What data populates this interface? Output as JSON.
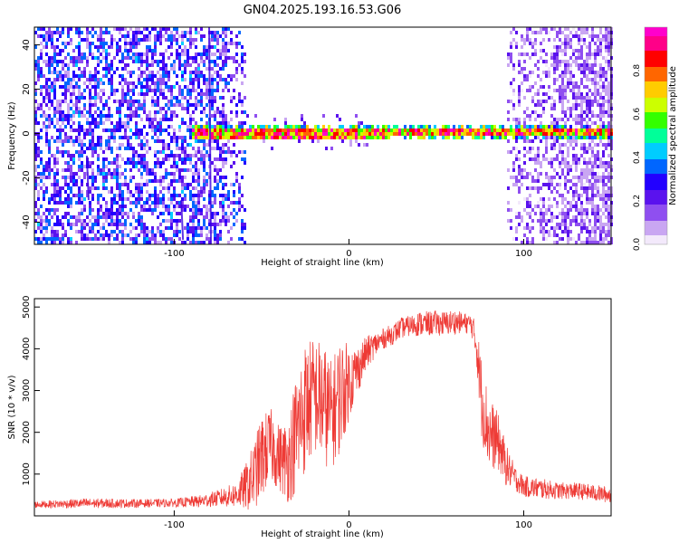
{
  "title": "GN04.2025.193.16.53.G06",
  "colors": {
    "spectrogram_low": "#dcc6f5",
    "spectrogram_mid": "#6a17f2",
    "snr_line": "#ee3a35"
  },
  "chart_data": [
    {
      "type": "heatmap",
      "title": "GN04.2025.193.16.53.G06",
      "xlabel": "Height of straight line (km)",
      "ylabel": "Frequency (Hz)",
      "xlim": [
        -180,
        150
      ],
      "ylim": [
        -50,
        48
      ],
      "xticks": [
        -100,
        0,
        100
      ],
      "yticks": [
        -40,
        -20,
        0,
        20,
        40
      ],
      "colorbar": {
        "label": "Normalized spectral amplitude",
        "range": [
          0,
          1
        ],
        "ticks": [
          0.0,
          0.2,
          0.4,
          0.6,
          0.8
        ],
        "colormap": [
          "#f3e9fb",
          "#c9a6f2",
          "#8f4ff0",
          "#5a12ee",
          "#2200ff",
          "#0066ff",
          "#00ccff",
          "#00ff99",
          "#33ff00",
          "#ccff00",
          "#ffcc00",
          "#ff6600",
          "#ff0000",
          "#ff0088",
          "#ff00cc"
        ]
      },
      "regions": [
        {
          "name": "noise-dense-left",
          "x": [
            -180,
            -60
          ],
          "y": [
            -50,
            48
          ],
          "amplitude": 0.25
        },
        {
          "name": "noise-sparse-right",
          "x": [
            90,
            150
          ],
          "y": [
            -50,
            48
          ],
          "amplitude": 0.1
        },
        {
          "name": "signal-band",
          "x": [
            -90,
            150
          ],
          "y_center": 1,
          "amplitude": 0.9
        }
      ]
    },
    {
      "type": "line",
      "xlabel": "Height of straight line (km)",
      "ylabel": "SNR (10 * v/v)",
      "xlim": [
        -180,
        150
      ],
      "ylim": [
        0,
        5200
      ],
      "xticks": [
        -100,
        0,
        100
      ],
      "yticks": [
        1000,
        2000,
        3000,
        4000,
        5000
      ],
      "series": [
        {
          "x": [
            -180,
            -150,
            -120,
            -100,
            -85,
            -75,
            -65,
            -60,
            -55,
            -50,
            -45,
            -40,
            -35,
            -30,
            -25,
            -20,
            -15,
            -10,
            -5,
            0,
            5,
            10,
            15,
            20,
            25,
            30,
            35,
            40,
            45,
            50,
            55,
            60,
            65,
            70,
            73,
            76,
            80,
            85,
            90,
            95,
            100,
            110,
            120,
            130,
            140,
            150
          ],
          "mean": [
            270,
            300,
            300,
            310,
            350,
            420,
            500,
            650,
            900,
            1400,
            1700,
            1400,
            1300,
            2000,
            2600,
            2900,
            2700,
            2400,
            2900,
            3200,
            3500,
            3900,
            4100,
            4250,
            4350,
            4500,
            4550,
            4600,
            4600,
            4620,
            4600,
            4650,
            4620,
            4600,
            4100,
            2800,
            2000,
            1800,
            1200,
            900,
            700,
            650,
            600,
            600,
            550,
            500
          ],
          "amplitude": [
            80,
            120,
            100,
            100,
            150,
            200,
            300,
            500,
            800,
            1000,
            900,
            800,
            1000,
            1500,
            1600,
            1400,
            1500,
            1300,
            1400,
            900,
            600,
            400,
            300,
            250,
            250,
            250,
            250,
            300,
            300,
            300,
            300,
            300,
            250,
            250,
            500,
            1000,
            900,
            700,
            500,
            300,
            250,
            250,
            200,
            200,
            200,
            200
          ]
        }
      ]
    }
  ]
}
